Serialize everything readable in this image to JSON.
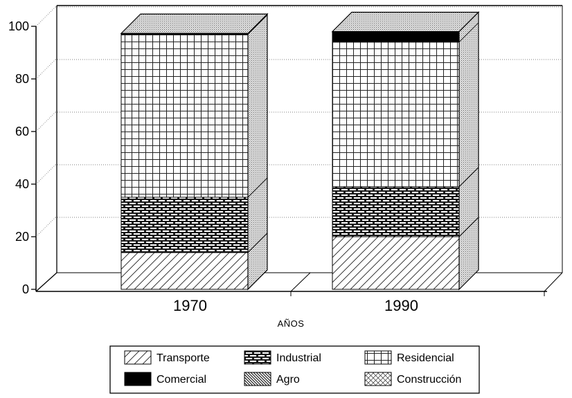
{
  "chart_data": {
    "type": "bar",
    "stacked": true,
    "categories": [
      "1970",
      "1990"
    ],
    "xlabel": "AÑOS",
    "ylabel": "",
    "ylim": [
      0,
      100
    ],
    "yticks": [
      0,
      20,
      40,
      60,
      80,
      100
    ],
    "grid": true,
    "legend_position": "bottom",
    "series": [
      {
        "name": "Transporte",
        "pattern": "diagonal-hatch",
        "values": [
          14,
          20
        ]
      },
      {
        "name": "Industrial",
        "pattern": "brick",
        "values": [
          21,
          19
        ]
      },
      {
        "name": "Residencial",
        "pattern": "grid",
        "values": [
          62,
          55
        ]
      },
      {
        "name": "Comercial",
        "pattern": "solid-black",
        "values": [
          0.3,
          4
        ]
      },
      {
        "name": "Agro",
        "pattern": "dense-hatch",
        "values": [
          0,
          0
        ]
      },
      {
        "name": "Construcción",
        "pattern": "cross-hatch",
        "values": [
          0,
          0
        ]
      }
    ]
  }
}
